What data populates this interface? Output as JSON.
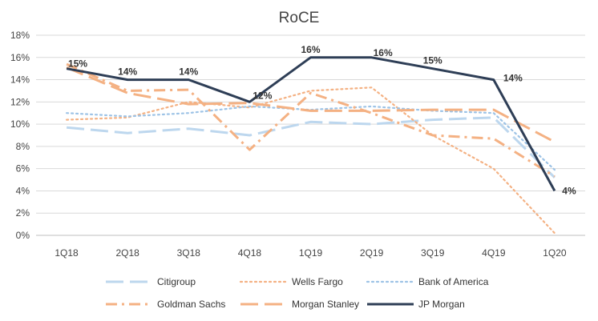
{
  "chart_data": {
    "type": "line",
    "title": "RoCE",
    "xlabel": "",
    "ylabel": "",
    "categories": [
      "1Q18",
      "2Q18",
      "3Q18",
      "4Q18",
      "1Q19",
      "2Q19",
      "3Q19",
      "4Q19",
      "1Q20"
    ],
    "ylim": [
      0,
      18
    ],
    "yticks": [
      0,
      2,
      4,
      6,
      8,
      10,
      12,
      14,
      16,
      18
    ],
    "y_tick_format": "percent",
    "grid": true,
    "legend_position": "bottom",
    "series": [
      {
        "name": "Citigroup",
        "values": [
          9.7,
          9.2,
          9.6,
          9.0,
          10.2,
          10.0,
          10.4,
          10.6,
          5.2
        ],
        "color": "#bdd7ee",
        "dash": "long-dash"
      },
      {
        "name": "Wells Fargo",
        "values": [
          10.4,
          10.6,
          12.0,
          11.5,
          13.0,
          13.3,
          9.0,
          6.0,
          0.2
        ],
        "color": "#f4b183",
        "dash": "dot"
      },
      {
        "name": "Bank of America",
        "values": [
          11.0,
          10.7,
          11.0,
          11.6,
          11.3,
          11.6,
          11.2,
          11.0,
          5.9
        ],
        "color": "#9dc3e6",
        "dash": "dot"
      },
      {
        "name": "Goldman Sachs",
        "values": [
          15.4,
          13.0,
          13.1,
          7.7,
          12.8,
          11.0,
          9.0,
          8.7,
          5.3
        ],
        "color": "#f4b183",
        "dash": "dash-dot"
      },
      {
        "name": "Morgan Stanley",
        "values": [
          15.1,
          12.8,
          11.8,
          11.9,
          11.2,
          11.2,
          11.3,
          11.3,
          8.4
        ],
        "color": "#f4b183",
        "dash": "long-dash"
      },
      {
        "name": "JP Morgan",
        "values": [
          15,
          14,
          14,
          12,
          16,
          16,
          15,
          14,
          4
        ],
        "color": "#2e3e56",
        "dash": "solid",
        "labels": [
          "15%",
          "14%",
          "14%",
          "12%",
          "16%",
          "16%",
          "15%",
          "14%",
          "4%"
        ]
      }
    ]
  }
}
